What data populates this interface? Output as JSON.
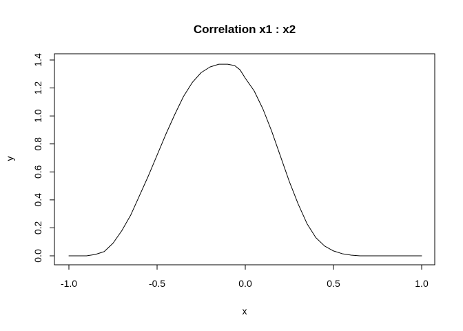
{
  "chart_data": {
    "type": "line",
    "title": "Correlation x1 : x2",
    "xlabel": "x",
    "ylabel": "y",
    "xlim": [
      -1.0,
      1.0
    ],
    "ylim": [
      0.0,
      1.4
    ],
    "grid": false,
    "x_ticks": [
      -1.0,
      -0.5,
      0.0,
      0.5,
      1.0
    ],
    "x_tick_labels": [
      "-1.0",
      "-0.5",
      "0.0",
      "0.5",
      "1.0"
    ],
    "y_ticks": [
      0.0,
      0.2,
      0.4,
      0.6,
      0.8,
      1.0,
      1.2,
      1.4
    ],
    "y_tick_labels": [
      "0.0",
      "0.2",
      "0.4",
      "0.6",
      "0.8",
      "1.0",
      "1.2",
      "1.4"
    ],
    "series": [
      {
        "x": [
          -1.0,
          -0.9,
          -0.85,
          -0.8,
          -0.75,
          -0.7,
          -0.65,
          -0.6,
          -0.55,
          -0.5,
          -0.45,
          -0.4,
          -0.35,
          -0.3,
          -0.25,
          -0.2,
          -0.15,
          -0.1,
          -0.06,
          -0.03,
          0.0,
          0.05,
          0.1,
          0.15,
          0.2,
          0.25,
          0.3,
          0.35,
          0.4,
          0.45,
          0.5,
          0.55,
          0.6,
          0.65,
          0.7,
          0.8,
          0.9,
          1.0
        ],
        "y": [
          0.0,
          0.0,
          0.01,
          0.03,
          0.09,
          0.18,
          0.29,
          0.43,
          0.57,
          0.72,
          0.87,
          1.01,
          1.14,
          1.24,
          1.31,
          1.35,
          1.37,
          1.37,
          1.36,
          1.33,
          1.27,
          1.18,
          1.05,
          0.89,
          0.71,
          0.53,
          0.37,
          0.23,
          0.13,
          0.07,
          0.035,
          0.015,
          0.005,
          0.0,
          0.0,
          0.0,
          0.0,
          0.0
        ],
        "color": "#000000"
      }
    ]
  }
}
